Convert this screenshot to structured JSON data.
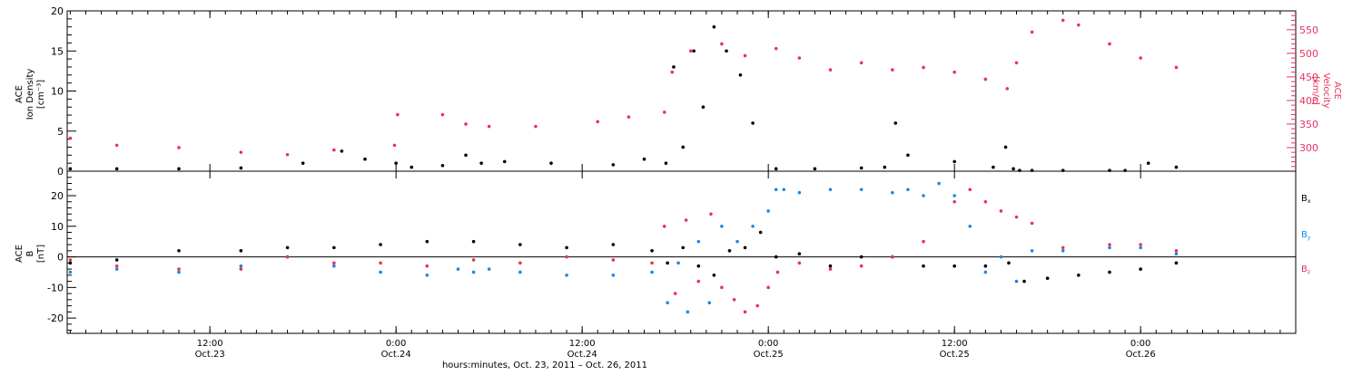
{
  "colors": {
    "black": "#000000",
    "pink": "#e8325f",
    "blue": "#1e88e5"
  },
  "x_axis": {
    "ticks": [
      {
        "time": "12:00",
        "date": "Oct.23",
        "hours": 12
      },
      {
        "time": "0:00",
        "date": "Oct.24",
        "hours": 24
      },
      {
        "time": "12:00",
        "date": "Oct.24",
        "hours": 36
      },
      {
        "time": "0:00",
        "date": "Oct.25",
        "hours": 48
      },
      {
        "time": "12:00",
        "date": "Oct.25",
        "hours": 60
      },
      {
        "time": "0:00",
        "date": "Oct.26",
        "hours": 72
      }
    ],
    "range_hours": [
      2.8,
      82
    ],
    "title": "hours:minutes, Oct. 23, 2011 – Oct. 26, 2011"
  },
  "chart_data": [
    {
      "type": "scatter",
      "panel": "top",
      "ylabel_left": [
        "ACE",
        "Ion Density",
        "[cm⁻³]"
      ],
      "ylabel_right": [
        "ACE",
        "Velocity",
        "[km/s]"
      ],
      "ylim_left": [
        0,
        20
      ],
      "ylim_right": [
        250,
        590
      ],
      "left_ticks": [
        0,
        5,
        10,
        15,
        20
      ],
      "right_ticks": [
        300,
        350,
        400,
        450,
        500,
        550
      ],
      "series": [
        {
          "color": "black",
          "axis": "left",
          "x_hours": [
            3,
            6,
            10,
            14,
            18,
            20.5,
            22,
            24,
            25,
            27,
            28.5,
            29.5,
            31,
            34,
            38,
            40,
            41.4,
            41.9,
            42.5,
            43.2,
            43.8,
            44.5,
            45.3,
            46.2,
            47,
            48.5,
            51,
            54,
            55.5,
            56.2,
            57,
            60,
            62.5,
            63.3,
            63.8,
            64.2,
            65,
            67,
            70,
            71,
            72.5,
            74.3
          ],
          "y": [
            0.3,
            0.3,
            0.3,
            0.4,
            1.0,
            2.5,
            1.5,
            1.0,
            0.5,
            0.7,
            2.0,
            1.0,
            1.2,
            1.0,
            0.8,
            1.5,
            1.0,
            13,
            3,
            15,
            8,
            18,
            15,
            12,
            6,
            0.3,
            0.3,
            0.4,
            0.5,
            6,
            2,
            1.2,
            0.5,
            3,
            0.3,
            0.1,
            0.1,
            0.1,
            0.1,
            0.1,
            1.0,
            0.5
          ]
        },
        {
          "color": "pink",
          "axis": "right",
          "x_hours": [
            3,
            6,
            10,
            14,
            17,
            20,
            23.9,
            24.1,
            27,
            28.5,
            30,
            33,
            37,
            39,
            41.3,
            41.8,
            43,
            45,
            46.5,
            48.5,
            50,
            52,
            54,
            56,
            58,
            60,
            62,
            63.4,
            64,
            65,
            67,
            68,
            70,
            72,
            74.3
          ],
          "y": [
            320,
            305,
            300,
            290,
            285,
            295,
            305,
            370,
            370,
            350,
            345,
            345,
            355,
            365,
            375,
            460,
            505,
            520,
            495,
            510,
            490,
            465,
            480,
            465,
            470,
            460,
            445,
            425,
            480,
            545,
            570,
            560,
            520,
            490,
            470
          ]
        }
      ]
    },
    {
      "type": "scatter",
      "panel": "bottom",
      "ylabel": [
        "ACE",
        "B",
        "[nT]"
      ],
      "ylim": [
        -25,
        28
      ],
      "ticks": [
        -20,
        -10,
        0,
        10,
        20
      ],
      "legend": [
        {
          "label": "B",
          "subscript": "x",
          "color": "black"
        },
        {
          "label": "B",
          "subscript": "y",
          "color": "blue"
        },
        {
          "label": "B",
          "subscript": "z",
          "color": "pink"
        }
      ],
      "series": [
        {
          "color": "black",
          "x_hours": [
            3,
            6,
            10,
            14,
            17,
            20,
            23,
            26,
            29,
            32,
            35,
            38,
            40.5,
            41.5,
            42.5,
            43.5,
            44.5,
            45.5,
            46.5,
            47.5,
            48.5,
            50,
            52,
            54,
            56,
            58,
            60,
            62,
            63.5,
            64.5,
            66,
            68,
            70,
            72,
            74.3
          ],
          "y": [
            -2,
            -1,
            2,
            2,
            3,
            3,
            4,
            5,
            5,
            4,
            3,
            4,
            2,
            -2,
            3,
            -3,
            -6,
            2,
            3,
            8,
            0,
            1,
            -3,
            0,
            0,
            -3,
            -3,
            -3,
            -2,
            -8,
            -7,
            -6,
            -5,
            -4,
            -2
          ]
        },
        {
          "color": "blue",
          "x_hours": [
            3,
            6,
            10,
            14,
            17,
            20,
            23,
            26,
            28,
            29,
            30,
            32,
            35,
            38,
            40.5,
            41.5,
            42.2,
            42.8,
            43.5,
            44.2,
            45,
            46,
            47,
            48,
            48.5,
            49,
            50,
            52,
            54,
            56,
            57,
            58,
            59,
            60,
            61,
            62,
            63,
            64,
            65,
            67,
            70,
            72,
            74.3
          ],
          "y": [
            -5,
            -4,
            -5,
            -3,
            0,
            -3,
            -5,
            -6,
            -4,
            -5,
            -4,
            -5,
            -6,
            -6,
            -5,
            -15,
            -2,
            -18,
            5,
            -15,
            10,
            5,
            10,
            15,
            22,
            22,
            21,
            22,
            22,
            21,
            22,
            20,
            24,
            20,
            10,
            -5,
            0,
            -8,
            2,
            2,
            3,
            3,
            1
          ]
        },
        {
          "color": "pink",
          "x_hours": [
            3,
            6,
            10,
            14,
            17,
            20,
            23,
            26,
            29,
            32,
            35,
            38,
            40.5,
            41.3,
            42,
            42.7,
            43.5,
            44.3,
            45,
            45.8,
            46.5,
            47.3,
            48,
            48.6,
            50,
            52,
            54,
            56,
            58,
            60,
            61,
            62,
            63,
            64,
            65,
            67,
            70,
            72,
            74.3
          ],
          "y": [
            -1,
            -3,
            -4,
            -4,
            0,
            -2,
            -2,
            -3,
            -1,
            -2,
            0,
            -1,
            -2,
            10,
            -12,
            12,
            -8,
            14,
            -10,
            -14,
            -18,
            -16,
            -10,
            -5,
            -2,
            -4,
            -3,
            0,
            5,
            18,
            22,
            18,
            15,
            13,
            11,
            3,
            4,
            4,
            2
          ]
        }
      ]
    }
  ]
}
